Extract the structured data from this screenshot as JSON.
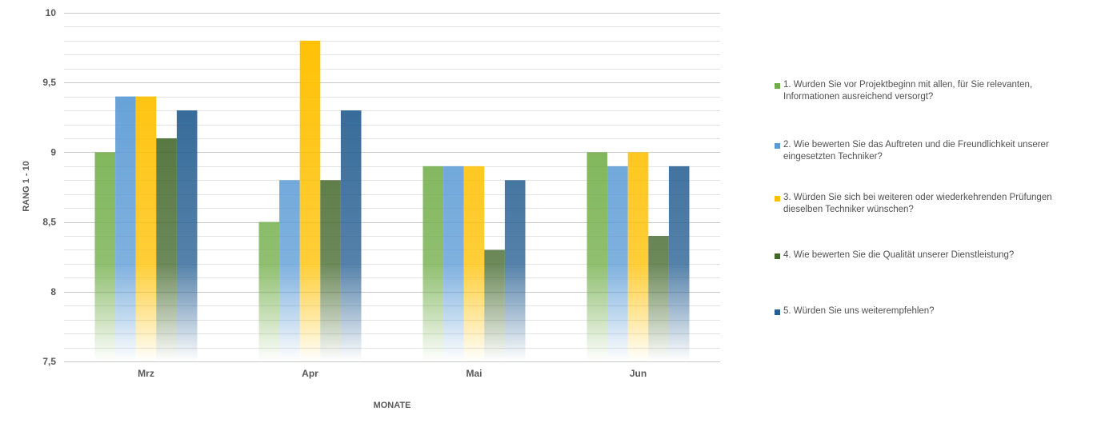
{
  "chart_data": {
    "type": "bar",
    "categories": [
      "Mrz",
      "Apr",
      "Mai",
      "Jun"
    ],
    "series": [
      {
        "name": "1. Wurden Sie vor Projektbeginn mit allen, für Sie relevanten, Informationen ausreichend versorgt?",
        "color": "#70ad47",
        "values": [
          9.0,
          8.5,
          8.9,
          9.0
        ]
      },
      {
        "name": "2. Wie bewerten Sie das Auftreten und die Freundlichkeit unserer eingesetzten Techniker?",
        "color": "#5b9bd5",
        "values": [
          9.4,
          8.8,
          8.9,
          8.9
        ]
      },
      {
        "name": "3. Würden Sie sich bei weiteren oder wiederkehrenden Prüfungen dieselben Techniker wünschen?",
        "color": "#ffc000",
        "values": [
          9.4,
          9.8,
          8.9,
          9.0
        ]
      },
      {
        "name": "4. Wie bewerten Sie die Qualität unserer Dienstleistung?",
        "color": "#43682b",
        "values": [
          9.1,
          8.8,
          8.3,
          8.4
        ]
      },
      {
        "name": "5. Würden Sie uns weiterempfehlen?",
        "color": "#255e91",
        "values": [
          9.3,
          9.3,
          8.8,
          8.9
        ]
      }
    ],
    "title": "",
    "xlabel": "MONATE",
    "ylabel": "RANG 1 - 10",
    "ylim": [
      7.5,
      10
    ],
    "yticks": [
      "7,5",
      "8",
      "8,5",
      "9",
      "9,5",
      "10"
    ],
    "grid": true,
    "legend_position": "right"
  }
}
